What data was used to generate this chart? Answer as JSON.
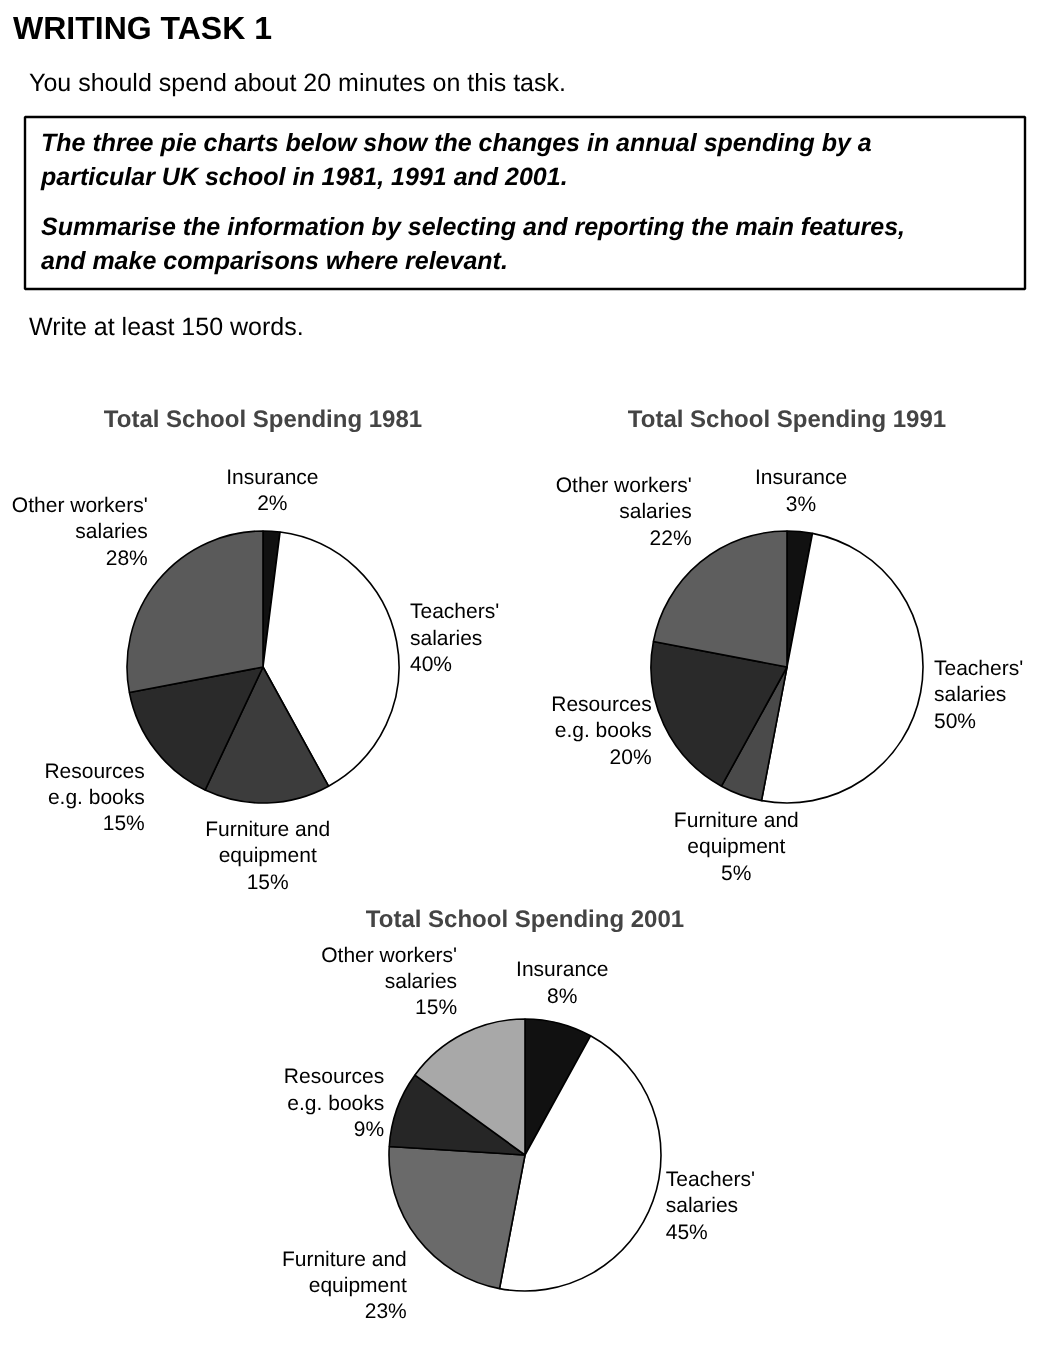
{
  "chart_data": [
    {
      "type": "pie",
      "title": "Total School Spending 1981",
      "categories": [
        "Insurance",
        "Teachers'\nsalaries",
        "Furniture and\nequipment",
        "Resources\ne.g. books",
        "Other workers'\nsalaries"
      ],
      "values": [
        2,
        40,
        15,
        15,
        28
      ],
      "value_labels": [
        "2%",
        "40%",
        "15%",
        "15%",
        "28%"
      ],
      "colors": [
        "#111111",
        "#ffffff",
        "#3c3c3c",
        "#2a2a2a",
        "#5a5a5a"
      ],
      "annotations": [
        "WRITING TASK 1",
        "You should spend about 20 minutes on this task.",
        "The three pie charts below show the changes in annual spending by a particular UK school in 1981, 1991 and 2001.",
        "Summarise the information by selecting and reporting the main features, and make comparisons where relevant.",
        "Write at least 150 words."
      ]
    },
    {
      "type": "pie",
      "title": "Total School Spending 1991",
      "categories": [
        "Insurance",
        "Teachers'\nsalaries",
        "Furniture and\nequipment",
        "Resources\ne.g. books",
        "Other workers'\nsalaries"
      ],
      "values": [
        3,
        50,
        5,
        20,
        22
      ],
      "value_labels": [
        "3%",
        "50%",
        "5%",
        "20%",
        "22%"
      ],
      "colors": [
        "#111111",
        "#ffffff",
        "#4a4a4a",
        "#2a2a2a",
        "#5e5e5e"
      ]
    },
    {
      "type": "pie",
      "title": "Total School Spending 2001",
      "categories": [
        "Insurance",
        "Teachers'\nsalaries",
        "Furniture and\nequipment",
        "Resources\ne.g. books",
        "Other workers'\nsalaries"
      ],
      "values": [
        8,
        45,
        23,
        9,
        15
      ],
      "value_labels": [
        "8%",
        "45%",
        "23%",
        "9%",
        "15%"
      ],
      "colors": [
        "#111111",
        "#ffffff",
        "#6a6a6a",
        "#262626",
        "#a8a8a8"
      ]
    }
  ]
}
